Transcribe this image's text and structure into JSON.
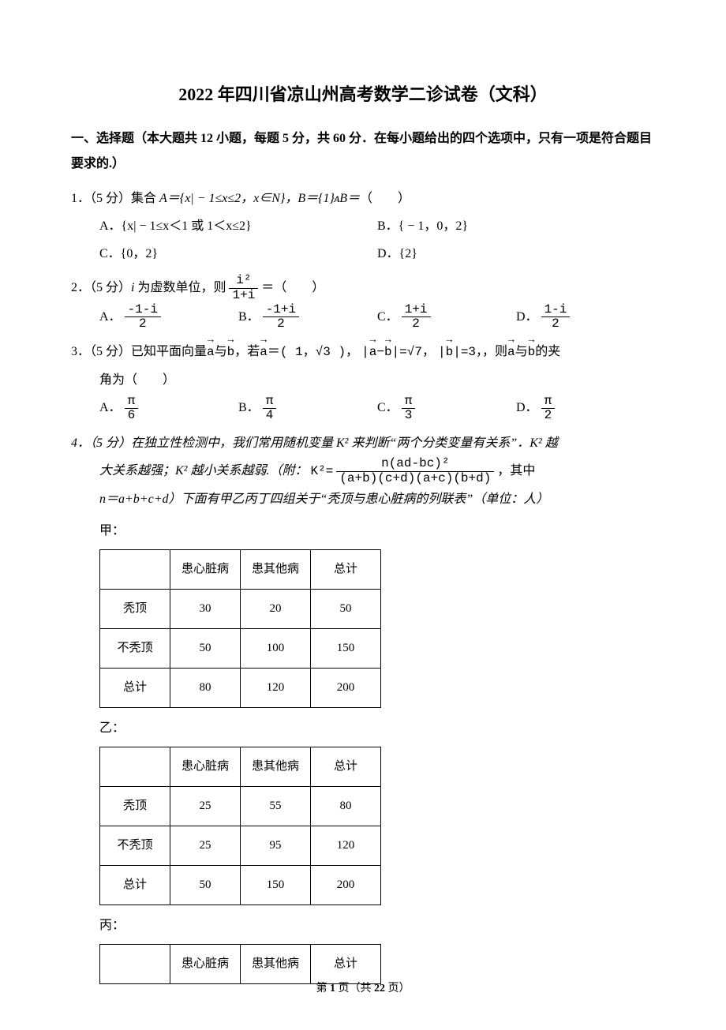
{
  "title": "2022 年四川省凉山州高考数学二诊试卷（文科）",
  "section_heading": "一、选择题（本大题共 12 小题，每题 5 分，共 60 分．在每小题给出的四个选项中，只有一项是符合题目要求的.）",
  "q1": {
    "stem_prefix": "1．（5 分）集合 ",
    "stem_math": "A＝{x| − 1≤x≤2，x∈N}，B＝{1}ᴀB＝",
    "stem_suffix": "（　　）",
    "optA": "A．{x| − 1≤x＜1 或 1＜x≤2}",
    "optB": "B．{ − 1，0，2}",
    "optC": "C．{0，2}",
    "optD": "D．{2}"
  },
  "q2": {
    "stem_prefix": "2．（5 分）",
    "stem_mid1": "i",
    "stem_mid2": " 为虚数单位，则",
    "frac_num": "i²",
    "frac_den": "1+i",
    "stem_suffix": "＝（　　）",
    "optA_label": "A．",
    "optA_num": "-1-i",
    "optA_den": "2",
    "optB_label": "B．",
    "optB_num": "-1+i",
    "optB_den": "2",
    "optC_label": "C．",
    "optC_num": "1+i",
    "optC_den": "2",
    "optD_label": "D．",
    "optD_num": "1-i",
    "optD_den": "2"
  },
  "q3": {
    "stem_prefix": "3．（5 分）已知平面向量",
    "vec_a": "a",
    "txt_and": "与",
    "vec_b": "b",
    "txt_if": "，若",
    "eq_a": "＝( 1，",
    "sqrt3": "√3",
    "eq_a_end": " )，",
    "abs_open": "|",
    "minus": "−",
    "abs_close": "|",
    "eq_sqrt7": "=√7",
    "comma": "，",
    "eq_b3": "=3",
    "txt_then": "，则",
    "txt_angle": "的夹",
    "line2": "角为（　　）",
    "optA_label": "A．",
    "optB_label": "B．",
    "optC_label": "C．",
    "optD_label": "D．",
    "pi": "π",
    "den6": "6",
    "den4": "4",
    "den3": "3",
    "den2": "2"
  },
  "q4": {
    "line1": "4．（5 分）在独立性检测中，我们常用随机变量 K² 来判断“两个分类变量有关系”．K² 越",
    "line2_a": "大关系越强；K² 越小关系越弱.（附：",
    "k2_label": "K²=",
    "k2_num": "n(ad-bc)²",
    "k2_den": "(a+b)(c+d)(a+c)(b+d)",
    "line2_b": "，其中",
    "line3": "n＝a+b+c+d）下面有甲乙丙丁四组关于“秃顶与患心脏病的列联表”（单位：人）",
    "label_jia": "甲：",
    "label_yi": "乙：",
    "label_bing": "丙：",
    "tables": {
      "headers": [
        "",
        "患心脏病",
        "患其他病",
        "总计"
      ],
      "jia": {
        "rows": [
          [
            "秃顶",
            "30",
            "20",
            "50"
          ],
          [
            "不秃顶",
            "50",
            "100",
            "150"
          ],
          [
            "总计",
            "80",
            "120",
            "200"
          ]
        ]
      },
      "yi": {
        "rows": [
          [
            "秃顶",
            "25",
            "55",
            "80"
          ],
          [
            "不秃顶",
            "25",
            "95",
            "120"
          ],
          [
            "总计",
            "50",
            "150",
            "200"
          ]
        ]
      },
      "bing_headers_only": true
    }
  },
  "footer": {
    "prefix": "第 ",
    "page": "1",
    "mid": " 页（共 ",
    "total": "22",
    "suffix": " 页）"
  }
}
